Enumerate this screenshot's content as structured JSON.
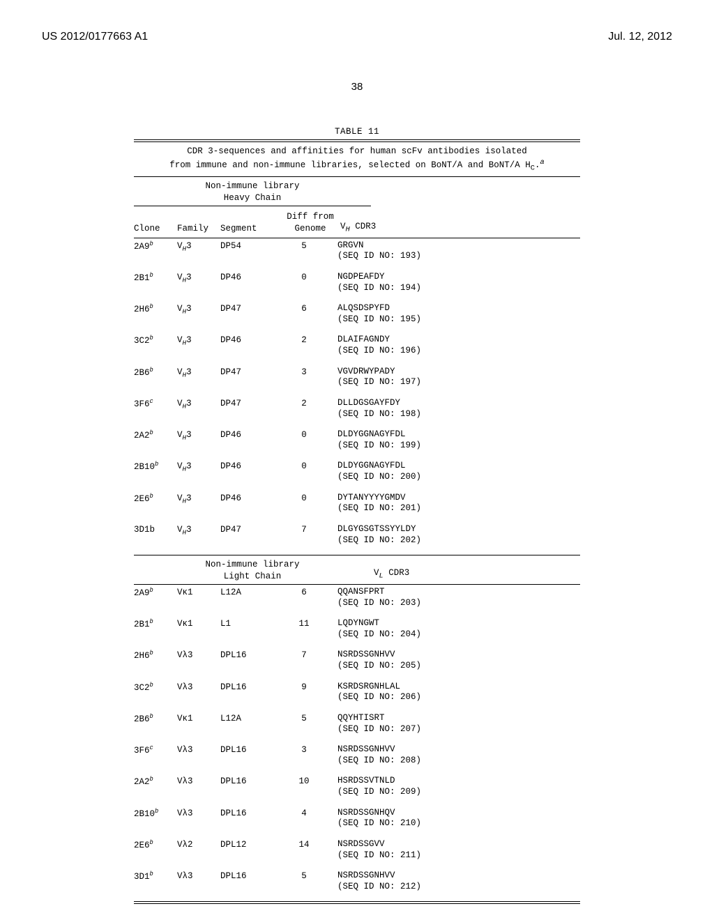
{
  "header": {
    "pub_number": "US 2012/0177663 A1",
    "pub_date": "Jul. 12, 2012"
  },
  "page_number": "38",
  "table": {
    "label": "TABLE 11",
    "caption_line1": "CDR 3-sequences and affinities for human scFv antibodies isolated",
    "caption_line2_prefix": "from immune and non-immune libraries, selected on BoNT/A and BoNT/A H",
    "caption_line2_sub": "C",
    "caption_line2_suffix": ".",
    "caption_sup": "a",
    "heavy_section_line1": "Non-immune library",
    "heavy_section_line2": "Heavy Chain",
    "light_section_line1": "Non-immune library",
    "light_section_line2": "Light Chain",
    "col_head": {
      "clone": "Clone",
      "family": "Family",
      "segment": "Segment",
      "diff1": "Diff from",
      "diff2": "Genome",
      "vh_prefix": "V",
      "vh_sub": "H",
      "vh_suffix": " CDR3",
      "vl_prefix": "V",
      "vl_sub": "L",
      "vl_suffix": " CDR3"
    },
    "heavy_rows": [
      {
        "clone": "2A9",
        "sup": "b",
        "family_prefix": "V",
        "family_sub": "H",
        "family_suffix": "3",
        "segment": "DP54",
        "diff": "5",
        "seq": "GRGVN",
        "seqid": "(SEQ ID NO: 193)"
      },
      {
        "clone": "2B1",
        "sup": "b",
        "family_prefix": "V",
        "family_sub": "H",
        "family_suffix": "3",
        "segment": "DP46",
        "diff": "0",
        "seq": "NGDPEAFDY",
        "seqid": "(SEQ ID NO: 194)"
      },
      {
        "clone": "2H6",
        "sup": "b",
        "family_prefix": "V",
        "family_sub": "H",
        "family_suffix": "3",
        "segment": "DP47",
        "diff": "6",
        "seq": "ALQSDSPYFD",
        "seqid": "(SEQ ID NO: 195)"
      },
      {
        "clone": "3C2",
        "sup": "b",
        "family_prefix": "V",
        "family_sub": "H",
        "family_suffix": "3",
        "segment": "DP46",
        "diff": "2",
        "seq": "DLAIFAGNDY",
        "seqid": "(SEQ ID NO: 196)"
      },
      {
        "clone": "2B6",
        "sup": "b",
        "family_prefix": "V",
        "family_sub": "H",
        "family_suffix": "3",
        "segment": "DP47",
        "diff": "3",
        "seq": "VGVDRWYPADY",
        "seqid": "(SEQ ID NO: 197)"
      },
      {
        "clone": "3F6",
        "sup": "c",
        "family_prefix": "V",
        "family_sub": "H",
        "family_suffix": "3",
        "segment": "DP47",
        "diff": "2",
        "seq": "DLLDGSGAYFDY",
        "seqid": "(SEQ ID NO: 198)"
      },
      {
        "clone": "2A2",
        "sup": "b",
        "family_prefix": "V",
        "family_sub": "H",
        "family_suffix": "3",
        "segment": "DP46",
        "diff": "0",
        "seq": "DLDYGGNAGYFDL",
        "seqid": "(SEQ ID NO: 199)"
      },
      {
        "clone": "2B10",
        "sup": "b",
        "family_prefix": "V",
        "family_sub": "H",
        "family_suffix": "3",
        "segment": "DP46",
        "diff": "0",
        "seq": "DLDYGGNAGYFDL",
        "seqid": "(SEQ ID NO: 200)"
      },
      {
        "clone": "2E6",
        "sup": "b",
        "family_prefix": "V",
        "family_sub": "H",
        "family_suffix": "3",
        "segment": "DP46",
        "diff": "0",
        "seq": "DYTANYYYYGMDV",
        "seqid": "(SEQ ID NO: 201)"
      },
      {
        "clone": "3D1b",
        "sup": "",
        "family_prefix": "V",
        "family_sub": "H",
        "family_suffix": "3",
        "segment": "DP47",
        "diff": "7",
        "seq": "DLGYGSGTSSYYLDY",
        "seqid": "(SEQ ID NO: 202)"
      }
    ],
    "light_rows": [
      {
        "clone": "2A9",
        "sup": "b",
        "family": "Vκ1",
        "segment": "L12A",
        "diff": "6",
        "seq": "QQANSFPRT",
        "seqid": "(SEQ ID NO: 203)"
      },
      {
        "clone": "2B1",
        "sup": "b",
        "family": "Vκ1",
        "segment": "L1",
        "diff": "11",
        "seq": "LQDYNGWT",
        "seqid": "(SEQ ID NO: 204)"
      },
      {
        "clone": "2H6",
        "sup": "b",
        "family": "Vλ3",
        "segment": "DPL16",
        "diff": "7",
        "seq": "NSRDSSGNHVV",
        "seqid": "(SEQ ID NO: 205)"
      },
      {
        "clone": "3C2",
        "sup": "b",
        "family": "Vλ3",
        "segment": "DPL16",
        "diff": "9",
        "seq": "KSRDSRGNHLAL",
        "seqid": "(SEQ ID NO: 206)"
      },
      {
        "clone": "2B6",
        "sup": "b",
        "family": "Vκ1",
        "segment": "L12A",
        "diff": "5",
        "seq": "QQYHTISRT",
        "seqid": "(SEQ ID NO: 207)"
      },
      {
        "clone": "3F6",
        "sup": "c",
        "family": "Vλ3",
        "segment": "DPL16",
        "diff": "3",
        "seq": "NSRDSSGNHVV",
        "seqid": "(SEQ ID NO: 208)"
      },
      {
        "clone": "2A2",
        "sup": "b",
        "family": "Vλ3",
        "segment": "DPL16",
        "diff": "10",
        "seq": "HSRDSSVTNLD",
        "seqid": "(SEQ ID NO: 209)"
      },
      {
        "clone": "2B10",
        "sup": "b",
        "family": "Vλ3",
        "segment": "DPL16",
        "diff": "4",
        "seq": "NSRDSSGNHQV",
        "seqid": "(SEQ ID NO: 210)"
      },
      {
        "clone": "2E6",
        "sup": "b",
        "family": "Vλ2",
        "segment": "DPL12",
        "diff": "14",
        "seq": "NSRDSSGVV",
        "seqid": "(SEQ ID NO: 211)"
      },
      {
        "clone": "3D1",
        "sup": "b",
        "family": "Vλ3",
        "segment": "DPL16",
        "diff": "5",
        "seq": "NSRDSSGNHVV",
        "seqid": "(SEQ ID NO: 212)"
      }
    ]
  }
}
